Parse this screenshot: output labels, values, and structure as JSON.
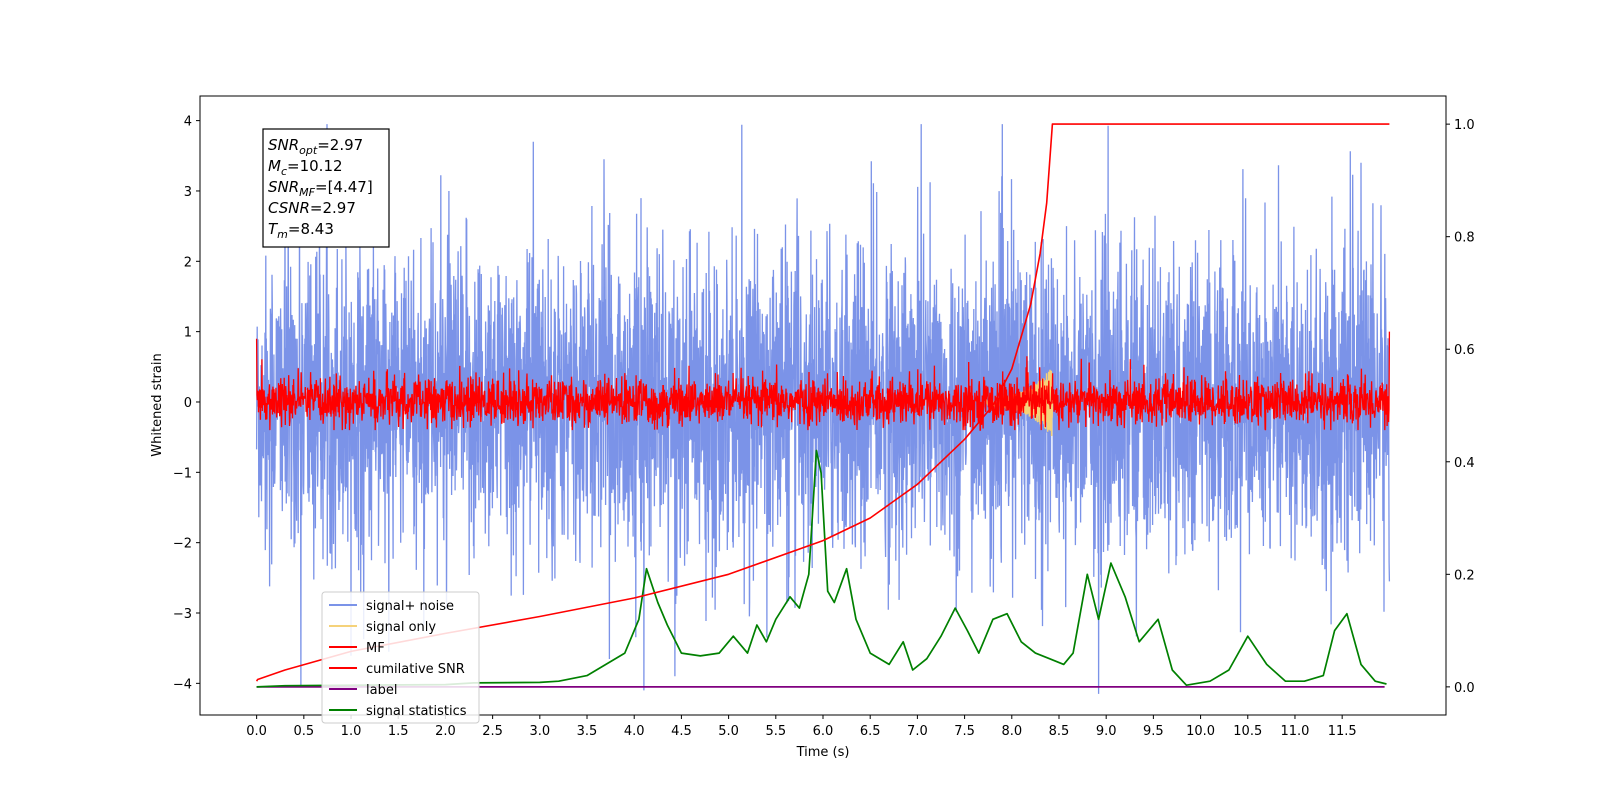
{
  "chart_data": {
    "type": "line",
    "xlabel": "Time (s)",
    "ylabel": "Whitened strain",
    "xlim": [
      -0.6,
      12.6
    ],
    "ylim": [
      -4.45,
      4.35
    ],
    "y2lim": [
      -0.05,
      1.05
    ],
    "x_ticks": [
      0.0,
      0.5,
      1.0,
      1.5,
      2.0,
      2.5,
      3.0,
      3.5,
      4.0,
      4.5,
      5.0,
      5.5,
      6.0,
      6.5,
      7.0,
      7.5,
      8.0,
      8.5,
      9.0,
      9.5,
      10.0,
      10.5,
      11.0,
      11.5
    ],
    "x_tick_labels": [
      "0.0",
      "0.5",
      "1.0",
      "1.5",
      "2.0",
      "2.5",
      "3.0",
      "3.5",
      "4.0",
      "4.5",
      "5.0",
      "5.5",
      "6.0",
      "6.5",
      "7.0",
      "7.5",
      "8.0",
      "8.5",
      "9.0",
      "9.5",
      "10.0",
      "10.5",
      "11.0",
      "11.5"
    ],
    "y_ticks": [
      -4,
      -3,
      -2,
      -1,
      0,
      1,
      2,
      3,
      4
    ],
    "y_tick_labels": [
      "−4",
      "−3",
      "−2",
      "−1",
      "0",
      "1",
      "2",
      "3",
      "4"
    ],
    "y2_ticks": [
      0.0,
      0.2,
      0.4,
      0.6,
      0.8,
      1.0
    ],
    "y2_tick_labels": [
      "0.0",
      "0.2",
      "0.4",
      "0.6",
      "0.8",
      "1.0"
    ],
    "grid": false,
    "legend_position": "lower-left",
    "series": [
      {
        "name": "signal+ noise",
        "color": "#7b93e8",
        "axis": "left",
        "kind": "noise",
        "x_range": [
          0.0,
          12.0
        ],
        "approx_range": [
          -4.1,
          3.95
        ],
        "peaks": [
          [
            7.04,
            3.95
          ],
          [
            2.93,
            3.7
          ],
          [
            3.68,
            3.45
          ],
          [
            11.7,
            3.4
          ],
          [
            0.47,
            -4.05
          ],
          [
            8.92,
            -4.15
          ],
          [
            4.43,
            -3.9
          ],
          [
            1.4,
            -3.55
          ]
        ]
      },
      {
        "name": "signal only",
        "color": "#f5d27a",
        "axis": "left",
        "kind": "chirp",
        "x_range": [
          7.6,
          8.43
        ],
        "amplitude_max": 0.45
      },
      {
        "name": "MF",
        "color": "#ff0000",
        "axis": "left",
        "kind": "noise",
        "x_range": [
          0.0,
          12.0
        ],
        "approx_range": [
          -0.4,
          1.0
        ]
      },
      {
        "name": "cumilative SNR",
        "color": "#ff0000",
        "axis": "right",
        "x": [
          0.0,
          0.01,
          0.3,
          1.0,
          2.0,
          3.0,
          4.0,
          5.0,
          6.0,
          6.5,
          7.0,
          7.5,
          7.8,
          8.0,
          8.2,
          8.3,
          8.37,
          8.43,
          12.0
        ],
        "y": [
          0.01,
          0.013,
          0.03,
          0.063,
          0.095,
          0.125,
          0.158,
          0.2,
          0.26,
          0.3,
          0.36,
          0.44,
          0.5,
          0.565,
          0.68,
          0.77,
          0.86,
          1.0,
          1.0
        ]
      },
      {
        "name": "label",
        "color": "#800080",
        "axis": "right",
        "x": [
          0.0,
          11.95
        ],
        "y": [
          0.0,
          0.0
        ]
      },
      {
        "name": "signal statistics",
        "color": "#008000",
        "axis": "right",
        "x": [
          0.0,
          0.3,
          1.0,
          2.0,
          2.3,
          3.0,
          3.2,
          3.5,
          3.7,
          3.9,
          4.05,
          4.13,
          4.25,
          4.35,
          4.5,
          4.7,
          4.9,
          5.05,
          5.2,
          5.3,
          5.4,
          5.5,
          5.65,
          5.75,
          5.85,
          5.93,
          5.98,
          6.05,
          6.12,
          6.25,
          6.35,
          6.5,
          6.7,
          6.85,
          6.95,
          7.1,
          7.25,
          7.4,
          7.53,
          7.65,
          7.8,
          7.95,
          8.1,
          8.25,
          8.4,
          8.55,
          8.65,
          8.8,
          8.92,
          9.05,
          9.2,
          9.35,
          9.55,
          9.7,
          9.85,
          10.1,
          10.3,
          10.5,
          10.7,
          10.9,
          11.1,
          11.3,
          11.42,
          11.55,
          11.7,
          11.85,
          11.97
        ],
        "y": [
          0.0,
          0.002,
          0.003,
          0.004,
          0.007,
          0.008,
          0.01,
          0.02,
          0.04,
          0.06,
          0.12,
          0.21,
          0.15,
          0.11,
          0.06,
          0.055,
          0.06,
          0.09,
          0.06,
          0.11,
          0.08,
          0.12,
          0.16,
          0.14,
          0.2,
          0.42,
          0.38,
          0.17,
          0.15,
          0.21,
          0.12,
          0.06,
          0.04,
          0.08,
          0.03,
          0.05,
          0.09,
          0.14,
          0.1,
          0.06,
          0.12,
          0.13,
          0.08,
          0.06,
          0.05,
          0.04,
          0.06,
          0.2,
          0.12,
          0.22,
          0.16,
          0.08,
          0.12,
          0.03,
          0.003,
          0.01,
          0.03,
          0.09,
          0.04,
          0.01,
          0.01,
          0.02,
          0.1,
          0.13,
          0.04,
          0.01,
          0.005
        ]
      }
    ],
    "annotation": {
      "lines": [
        {
          "var": "SNR",
          "sub": "opt",
          "value": "=2.97"
        },
        {
          "var": "M",
          "sub": "c",
          "value": "=10.12"
        },
        {
          "var": "SNR",
          "sub": "MF",
          "value": "=[4.47]"
        },
        {
          "var": "CSNR",
          "sub": "",
          "value": "=2.97"
        },
        {
          "var": "T",
          "sub": "m",
          "value": "=8.43"
        }
      ]
    }
  }
}
